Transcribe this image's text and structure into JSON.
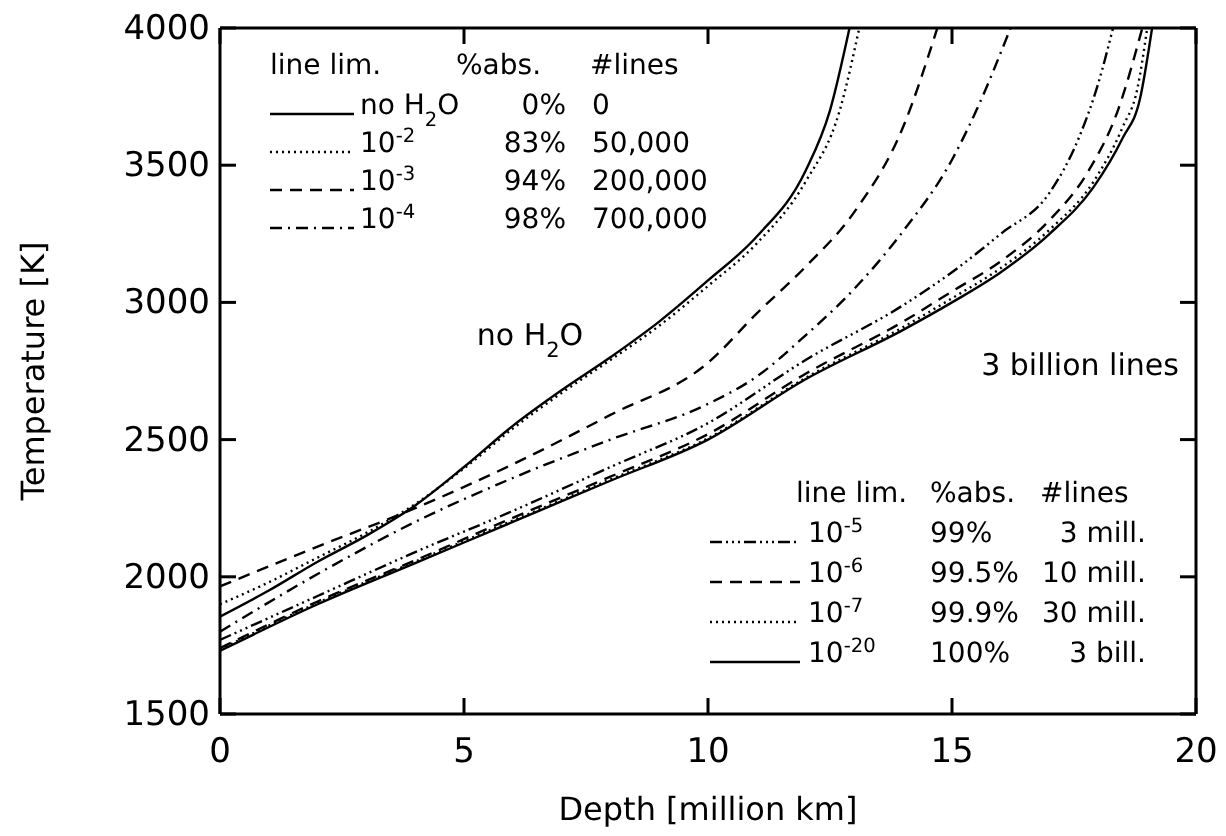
{
  "chart_data": {
    "type": "line",
    "xlabel": "Depth [million km]",
    "ylabel": "Temperature [K]",
    "xlim": [
      0,
      20
    ],
    "xticks": [
      0,
      5,
      10,
      15,
      20
    ],
    "ylim": [
      1500,
      4000
    ],
    "yticks": [
      1500,
      2000,
      2500,
      3000,
      3500,
      4000
    ],
    "grid": false,
    "legend": "left",
    "marker": "none",
    "series": [
      {
        "name": "no H$_{2}$O",
        "color": "#000000",
        "line_style": "solid",
        "x": [
          0,
          1,
          2,
          3,
          4,
          5,
          6,
          7,
          8,
          9,
          10,
          11,
          12,
          12.5,
          12.9
        ],
        "values": [
          1855,
          1950,
          2055,
          2150,
          2260,
          2400,
          2550,
          2680,
          2800,
          2930,
          3080,
          3240,
          3480,
          3700,
          4000
        ]
      },
      {
        "name": "10$^{-2}$",
        "color": "#000000",
        "line_style": "dotted",
        "x": [
          0,
          1,
          2,
          3,
          4,
          5,
          6,
          7,
          8,
          9,
          10,
          11,
          12,
          12.7,
          13.1
        ],
        "values": [
          1900,
          1980,
          2070,
          2160,
          2265,
          2395,
          2540,
          2670,
          2790,
          2915,
          3060,
          3215,
          3440,
          3700,
          4000
        ]
      },
      {
        "name": "10$^{-3}$",
        "color": "#000000",
        "line_style": "dashed",
        "x": [
          0,
          2,
          4,
          6,
          8,
          10,
          11,
          12,
          13,
          14,
          14.7
        ],
        "values": [
          1965,
          2110,
          2250,
          2410,
          2590,
          2780,
          2960,
          3130,
          3330,
          3640,
          4000
        ]
      },
      {
        "name": "10$^{-4}$",
        "color": "#000000",
        "line_style": "dashdot",
        "x": [
          0,
          2,
          4,
          6,
          8,
          10,
          11,
          12,
          13,
          14,
          15,
          15.5,
          16.2
        ],
        "values": [
          1800,
          2010,
          2200,
          2360,
          2500,
          2630,
          2730,
          2880,
          3050,
          3260,
          3520,
          3700,
          4000
        ]
      },
      {
        "name": "10$^{-5}$",
        "color": "#000000",
        "line_style": "dashdotdot",
        "x": [
          0,
          2,
          4,
          6,
          8,
          10,
          12,
          14,
          15,
          16,
          17,
          17.6,
          18,
          18.3
        ],
        "values": [
          1770,
          1930,
          2090,
          2240,
          2400,
          2560,
          2790,
          2990,
          3110,
          3250,
          3400,
          3600,
          3800,
          4000
        ]
      },
      {
        "name": "10$^{-6}$",
        "color": "#000000",
        "line_style": "dashed",
        "x": [
          0,
          2,
          4,
          6,
          8,
          10,
          12,
          14,
          15,
          16,
          17,
          17.8,
          18.4,
          18.9
        ],
        "values": [
          1740,
          1910,
          2060,
          2215,
          2365,
          2520,
          2740,
          2930,
          3040,
          3150,
          3300,
          3480,
          3700,
          4000
        ]
      },
      {
        "name": "10$^{-7}$",
        "color": "#000000",
        "line_style": "dotted",
        "x": [
          0,
          2,
          4,
          6,
          8,
          10,
          12,
          14,
          15,
          16,
          17,
          17.9,
          18.5,
          18.8,
          19.0
        ],
        "values": [
          1735,
          1905,
          2055,
          2205,
          2355,
          2505,
          2725,
          2910,
          3015,
          3125,
          3265,
          3440,
          3640,
          3780,
          4000
        ]
      },
      {
        "name": "10$^{-20}$",
        "color": "#000000",
        "line_style": "solid",
        "x": [
          0,
          2,
          4,
          6,
          8,
          10,
          12,
          14,
          15,
          16,
          17,
          17.9,
          18.5,
          18.85,
          19.1
        ],
        "values": [
          1730,
          1900,
          2050,
          2200,
          2350,
          2500,
          2720,
          2900,
          3000,
          3110,
          3250,
          3420,
          3600,
          3740,
          4000
        ]
      }
    ],
    "annotations": [
      "line lim.",
      "%abs.",
      "#lines",
      "0%",
      "0",
      "83%",
      "50,000",
      "94%",
      "200,000",
      "98%",
      "700,000",
      "line lim.",
      "%abs.",
      "#lines",
      "99%",
      "3 mill.",
      "99.5%",
      "10 mill.",
      "99.9%",
      "30 mill.",
      "100%",
      "3 bill.",
      "no H$_{2}$O",
      "3 billion lines"
    ]
  }
}
